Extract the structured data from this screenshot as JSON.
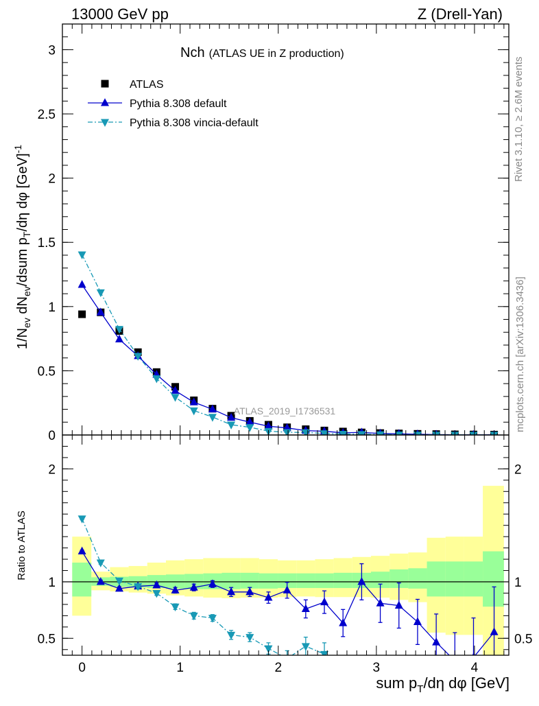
{
  "header": {
    "left": "13000 GeV pp",
    "right": "Z (Drell-Yan)"
  },
  "side_labels": {
    "rivet": "Rivet 3.1.10, ≥ 2.6M events",
    "mcplots": "mcplots.cern.ch [arXiv:1306.3436]"
  },
  "chart_data": [
    {
      "type": "scatter",
      "panel": "main",
      "title_main": "Nch",
      "title_sub": "(ATLAS UE in Z production)",
      "watermark": "ATLAS_2019_I1736531",
      "ylabel": "1/N_ev dN_ev/dsum p_T/dη dφ [GeV]^-1",
      "xlabel": "sum p_T/dη dφ [GeV]",
      "xlim": [
        -0.2,
        4.35
      ],
      "ylim": [
        0,
        3.2
      ],
      "x_ticks": [
        "0",
        "1",
        "2",
        "3",
        "4"
      ],
      "y_ticks": [
        "0",
        "0.5",
        "1",
        "1.5",
        "2",
        "2.5",
        "3"
      ],
      "legend_position": "top-left",
      "series": [
        {
          "name": "ATLAS",
          "color": "#000000",
          "marker": "square",
          "x": [
            0,
            0.19,
            0.38,
            0.57,
            0.76,
            0.95,
            1.14,
            1.33,
            1.52,
            1.71,
            1.9,
            2.09,
            2.28,
            2.47,
            2.66,
            2.85,
            3.04,
            3.23,
            3.42,
            3.61,
            3.8,
            3.99,
            4.2
          ],
          "y": [
            0.94,
            0.955,
            0.81,
            0.645,
            0.49,
            0.375,
            0.27,
            0.205,
            0.15,
            0.11,
            0.08,
            0.06,
            0.045,
            0.035,
            0.027,
            0.02,
            0.015,
            0.012,
            0.009,
            0.007,
            0.005,
            0.004,
            0.003
          ]
        },
        {
          "name": "Pythia 8.308 default",
          "color": "#0000cc",
          "marker": "triangle-up",
          "line": "solid",
          "x": [
            0,
            0.19,
            0.38,
            0.57,
            0.76,
            0.95,
            1.14,
            1.33,
            1.52,
            1.71,
            1.9,
            2.09,
            2.28,
            2.47,
            2.66,
            2.85,
            3.04,
            3.23,
            3.42,
            3.61,
            3.8,
            3.99,
            4.2
          ],
          "y": [
            1.17,
            0.955,
            0.745,
            0.615,
            0.47,
            0.345,
            0.255,
            0.2,
            0.135,
            0.1,
            0.068,
            0.055,
            0.034,
            0.029,
            0.017,
            0.02,
            0.012,
            0.009,
            0.006,
            0.0033,
            0.002,
            0.0013,
            0.0017
          ]
        },
        {
          "name": "Pythia 8.308 vincia-default",
          "color": "#1899b5",
          "marker": "triangle-down",
          "line": "dashdot",
          "x": [
            0,
            0.19,
            0.38,
            0.57,
            0.76,
            0.95,
            1.14,
            1.33,
            1.52,
            1.71,
            1.9,
            2.09,
            2.28,
            2.47,
            2.66,
            2.85,
            3.04,
            3.23,
            3.42,
            3.61,
            3.8,
            3.99,
            4.2
          ],
          "y": [
            1.405,
            1.11,
            0.825,
            0.615,
            0.44,
            0.295,
            0.19,
            0.14,
            0.08,
            0.06,
            0.03,
            0.021,
            0.02,
            0.012,
            0.008,
            0.006,
            0.004,
            0.003,
            0.002,
            0.0015,
            0.001,
            0.0008,
            0.0006
          ]
        }
      ]
    },
    {
      "type": "line",
      "panel": "ratio",
      "ylabel": "Ratio to ATLAS",
      "xlim": [
        -0.2,
        4.35
      ],
      "ylim": [
        0.35,
        2.3
      ],
      "y_ticks": [
        "0.5",
        "1",
        "2"
      ],
      "reference_line": 1,
      "band_edges": [
        -0.1,
        0.095,
        0.285,
        0.475,
        0.665,
        0.855,
        1.045,
        1.235,
        1.425,
        1.615,
        1.805,
        1.995,
        2.185,
        2.375,
        2.565,
        2.755,
        2.945,
        3.135,
        3.325,
        3.515,
        3.705,
        3.895,
        4.085,
        4.3
      ],
      "uncertainty_bands": [
        {
          "name": "stat",
          "color": "#99ff99",
          "lo": [
            0.87,
            0.965,
            0.955,
            0.95,
            0.945,
            0.94,
            0.935,
            0.935,
            0.935,
            0.94,
            0.94,
            0.945,
            0.945,
            0.945,
            0.945,
            0.945,
            0.945,
            0.945,
            0.94,
            0.87,
            0.87,
            0.87,
            0.78
          ],
          "hi": [
            1.17,
            1.04,
            1.045,
            1.05,
            1.06,
            1.065,
            1.07,
            1.075,
            1.08,
            1.08,
            1.075,
            1.075,
            1.075,
            1.075,
            1.08,
            1.08,
            1.09,
            1.11,
            1.12,
            1.18,
            1.18,
            1.18,
            1.27
          ]
        },
        {
          "name": "syst",
          "color": "#ffff99",
          "lo": [
            0.7,
            0.925,
            0.915,
            0.905,
            0.895,
            0.88,
            0.87,
            0.86,
            0.855,
            0.86,
            0.86,
            0.865,
            0.87,
            0.865,
            0.865,
            0.865,
            0.86,
            0.84,
            0.82,
            0.55,
            0.53,
            0.53,
            0.25
          ],
          "hi": [
            1.4,
            1.09,
            1.13,
            1.14,
            1.17,
            1.19,
            1.2,
            1.21,
            1.21,
            1.21,
            1.2,
            1.19,
            1.19,
            1.2,
            1.21,
            1.22,
            1.23,
            1.25,
            1.26,
            1.39,
            1.4,
            1.4,
            1.85
          ]
        }
      ],
      "series": [
        {
          "name": "Pythia 8.308 default",
          "color": "#0000cc",
          "marker": "triangle-up",
          "x": [
            0,
            0.19,
            0.38,
            0.57,
            0.76,
            0.95,
            1.14,
            1.33,
            1.52,
            1.71,
            1.9,
            2.09,
            2.28,
            2.47,
            2.66,
            2.85,
            3.04,
            3.23,
            3.42,
            3.61,
            3.8,
            3.99,
            4.2
          ],
          "y": [
            1.27,
            1.0,
            0.94,
            0.96,
            0.97,
            0.925,
            0.95,
            0.98,
            0.91,
            0.91,
            0.86,
            0.925,
            0.76,
            0.82,
            0.635,
            1.0,
            0.81,
            0.79,
            0.645,
            0.465,
            0.3,
            0.33,
            0.555
          ],
          "err": [
            0.01,
            0.015,
            0.015,
            0.02,
            0.02,
            0.025,
            0.03,
            0.03,
            0.04,
            0.04,
            0.05,
            0.07,
            0.08,
            0.1,
            0.12,
            0.16,
            0.17,
            0.2,
            0.2,
            0.25,
            0.25,
            0.35,
            0.4
          ]
        },
        {
          "name": "Pythia 8.308 vincia-default",
          "color": "#1899b5",
          "marker": "triangle-down",
          "x": [
            0,
            0.19,
            0.38,
            0.57,
            0.76,
            0.95,
            1.14,
            1.33,
            1.52,
            1.71,
            1.9,
            2.09,
            2.28,
            2.47
          ],
          "y": [
            1.56,
            1.17,
            1.01,
            0.96,
            0.9,
            0.78,
            0.7,
            0.68,
            0.53,
            0.51,
            0.41,
            0.32,
            0.43,
            0.36
          ],
          "err": [
            0.01,
            0.015,
            0.015,
            0.02,
            0.02,
            0.025,
            0.03,
            0.03,
            0.04,
            0.04,
            0.05,
            0.07,
            0.08,
            0.1
          ]
        }
      ]
    }
  ]
}
